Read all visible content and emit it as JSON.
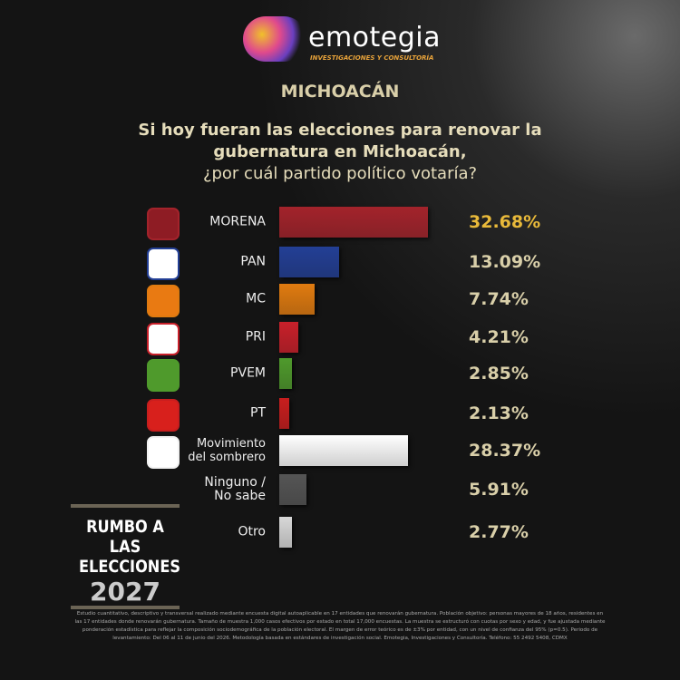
{
  "brand": {
    "name": "emotegia",
    "tagline": "INVESTIGACIONES Y CONSULTORÍA"
  },
  "badge": {
    "line1": "RUMBO A LAS",
    "line2": "ELECCIONES",
    "year": "2027"
  },
  "footnote": "Estudio cuantitativo, descriptivo y transversal realizado mediante encuesta digital autoaplicable en 17 entidades que renovarán gubernatura. Población objetivo: personas mayores de 18 años, residentes en las 17 entidades donde renovarán gubernatura. Tamaño de muestra 1,000 casos efectivos por estado en total 17,000 encuestas. La muestra se estructuró con cuotas por sexo y edad, y fue ajustada mediante ponderación estadística para reflejar la composición sociodemográfica de la población electoral. El margen de error teórico es de ±3% por entidad, con un nivel de confianza del 95% (p=0.5). Periodo de levantamiento: Del 06 al 11 de junio del 2026. Metodología basada en estándares de investigación social. Emotegia, Investigaciones y Consultoría. Teléfono: 55 2492 5408, CDMX",
  "chart_data": {
    "type": "bar",
    "orientation": "horizontal",
    "subtitle": "MICHOACÁN",
    "title": [
      "Si hoy fueran las elecciones para renovar la",
      "gubernatura en Michoacán,",
      "¿por cuál partido político votaría?"
    ],
    "categories": [
      "MORENA",
      "PAN",
      "MC",
      "PRI",
      "PVEM",
      "PT",
      "Movimiento del sombrero",
      "Ninguno / No sabe",
      "Otro"
    ],
    "values": [
      32.68,
      13.09,
      7.74,
      4.21,
      2.85,
      2.13,
      28.37,
      5.91,
      2.77
    ],
    "value_labels": [
      "32.68%",
      "13.09%",
      "7.74%",
      "4.21%",
      "2.85%",
      "2.13%",
      "28.37%",
      "5.91%",
      "2.77%"
    ],
    "colors": [
      "#a3232b",
      "#233f95",
      "#e07b10",
      "#c8202a",
      "#4f9a2c",
      "#c81e1e",
      "#f2f2f2",
      "#555555",
      "#d8d8d8"
    ],
    "value_label_colors": [
      "#e8b93a",
      "#d9cfa9",
      "#d9cfa9",
      "#d9cfa9",
      "#d9cfa9",
      "#d9cfa9",
      "#d9cfa9",
      "#d9cfa9",
      "#d9cfa9"
    ],
    "icon_colors": [
      "#8e1c24",
      "#ffffff",
      "#e97a12",
      "#ffffff",
      "#4f9a2c",
      "#d8201c",
      "#ffffff",
      null,
      null
    ]
  }
}
